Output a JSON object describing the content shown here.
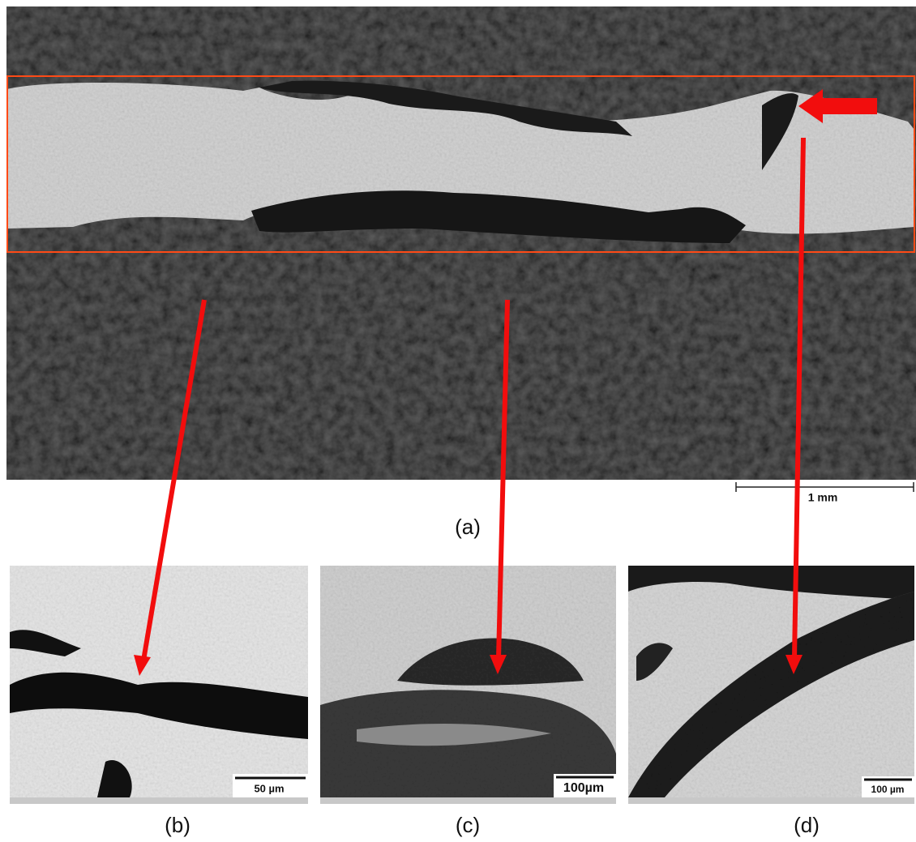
{
  "panels": [
    {
      "label": "(a)",
      "scale_bar": "1 mm"
    },
    {
      "label": "(b)",
      "scale_bar": "50 µm"
    },
    {
      "label": "(c)",
      "scale_bar": "100µm"
    },
    {
      "label": "(d)",
      "scale_bar": "100 µm"
    }
  ]
}
